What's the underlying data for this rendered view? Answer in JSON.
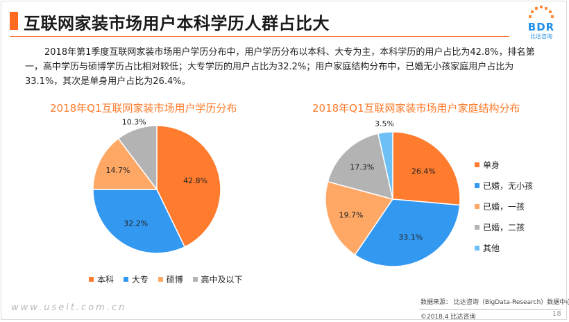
{
  "header": {
    "title": "互联网家装市场用户本科学历人群占比大",
    "logo_text": "BDR",
    "logo_sub": "比达咨询"
  },
  "summary": "2018年第1季度互联网家装市场用户学历分布中，用户学历分布以本科、大专为主，本科学历的用户占比为42.8%，排名第一，高中学历与硕博学历占比相对较低；大专学历的用户占比为32.2%；用户家庭结构分布中，已婚无小孩家庭用户占比为33.1%，其次是单身用户占比为26.4%。",
  "chart_data": [
    {
      "type": "pie",
      "title": "2018年Q1互联网家装市场用户学历分布",
      "categories": [
        "本科",
        "大专",
        "硕博",
        "高中及以下"
      ],
      "values": [
        42.8,
        32.2,
        14.7,
        10.3
      ],
      "labels": [
        "42.8%",
        "32.2%",
        "14.7%",
        "10.3%"
      ],
      "colors": [
        "#ff7b2e",
        "#3398f0",
        "#ffa866",
        "#b3b3b3"
      ],
      "legend": "bottom"
    },
    {
      "type": "pie",
      "title": "2018年Q1互联网家装市场用户家庭结构分布",
      "categories": [
        "单身",
        "已婚，无小孩",
        "已婚，一孩",
        "已婚，二孩",
        "其他"
      ],
      "values": [
        26.4,
        33.1,
        19.7,
        17.3,
        3.5
      ],
      "labels": [
        "26.4%",
        "33.1%",
        "19.7%",
        "17.3%",
        "3.5%"
      ],
      "colors": [
        "#ff7b2e",
        "#3398f0",
        "#ffa866",
        "#b3b3b3",
        "#6cc0f5"
      ],
      "legend": "right"
    }
  ],
  "footer": {
    "source": "数据来源： 比达咨询（BigData-Research）数据中心",
    "copyright": "©2018.4  比达咨询",
    "page": "18",
    "watermark": "www.useit.com.cn"
  }
}
